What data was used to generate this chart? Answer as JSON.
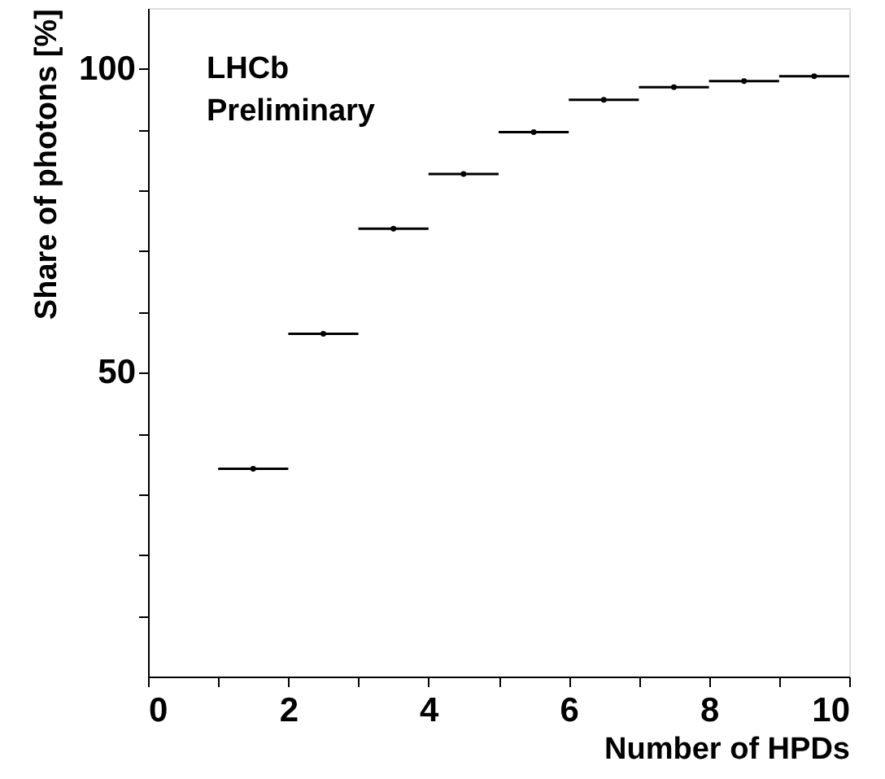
{
  "chart_data": {
    "type": "scatter",
    "xlabel": "Number of HPDs",
    "ylabel": "Share of photons [%]",
    "annotations": [
      "LHCb",
      "Preliminary"
    ],
    "x": [
      1.5,
      2.5,
      3.5,
      4.5,
      5.5,
      6.5,
      7.5,
      8.5,
      9.5
    ],
    "values": [
      34.2,
      56.4,
      73.7,
      82.7,
      89.6,
      94.9,
      97.0,
      98.0,
      98.8
    ],
    "xerrors": [
      0.5,
      0.5,
      0.5,
      0.5,
      0.5,
      0.5,
      0.5,
      0.5,
      0.5
    ],
    "color": "#000000",
    "xlim": [
      0,
      10
    ],
    "ylim": [
      0,
      110
    ],
    "xticks": [
      0,
      {
        "value": 1,
        "label": null
      },
      2,
      {
        "value": 3,
        "label": null
      },
      4,
      {
        "value": 5,
        "label": null
      },
      6,
      {
        "value": 7,
        "label": null
      },
      8,
      {
        "value": 9,
        "label": null
      },
      10
    ],
    "yticks": [
      {
        "value": 10,
        "label": null
      },
      {
        "value": 20,
        "label": null
      },
      {
        "value": 30,
        "label": null
      },
      {
        "value": 40,
        "label": null
      },
      50,
      {
        "value": 60,
        "label": null
      },
      {
        "value": 70,
        "label": null
      },
      {
        "value": 80,
        "label": null
      },
      {
        "value": 90,
        "label": null
      },
      100
    ],
    "errors": [
      0.3,
      0.3,
      0.3,
      0.3,
      0.3,
      0.3,
      0.3,
      0.3,
      0.3
    ],
    "grid": false
  }
}
